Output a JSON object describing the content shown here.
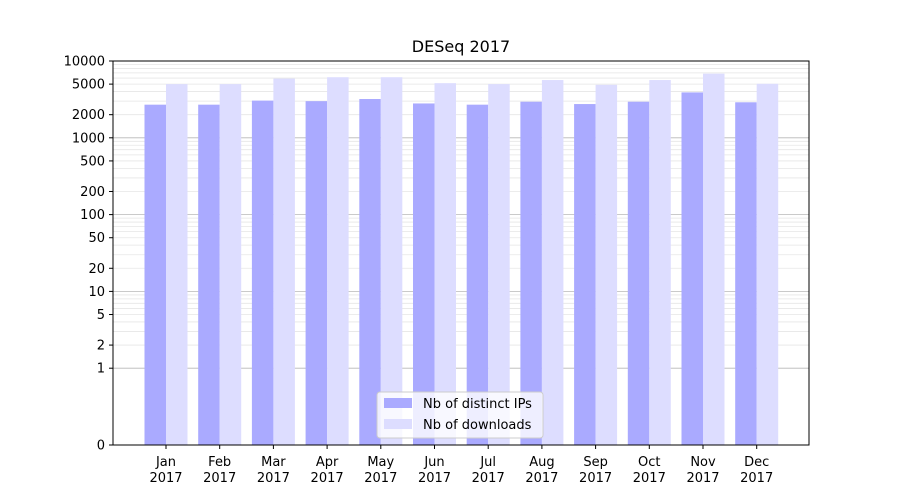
{
  "chart_data": {
    "type": "bar",
    "title": "DESeq 2017",
    "xlabel": "",
    "ylabel": "",
    "y_scale": "symlog",
    "ylim": [
      0,
      10000
    ],
    "yticks": [
      0,
      1,
      2,
      5,
      10,
      20,
      50,
      100,
      200,
      500,
      1000,
      2000,
      5000,
      10000
    ],
    "grid": true,
    "legend_position": "lower center",
    "categories": [
      [
        "Jan",
        "2017"
      ],
      [
        "Feb",
        "2017"
      ],
      [
        "Mar",
        "2017"
      ],
      [
        "Apr",
        "2017"
      ],
      [
        "May",
        "2017"
      ],
      [
        "Jun",
        "2017"
      ],
      [
        "Jul",
        "2017"
      ],
      [
        "Aug",
        "2017"
      ],
      [
        "Sep",
        "2017"
      ],
      [
        "Oct",
        "2017"
      ],
      [
        "Nov",
        "2017"
      ],
      [
        "Dec",
        "2017"
      ]
    ],
    "series": [
      {
        "name": "Nb of distinct IPs",
        "color": "#aaaaff",
        "values": [
          2700,
          2700,
          3050,
          3000,
          3200,
          2800,
          2700,
          2950,
          2750,
          2950,
          3900,
          2900
        ]
      },
      {
        "name": "Nb of downloads",
        "color": "#ddddff",
        "values": [
          5000,
          5000,
          5900,
          6150,
          6150,
          5150,
          5000,
          5650,
          4900,
          5650,
          6850,
          5050
        ]
      }
    ]
  }
}
